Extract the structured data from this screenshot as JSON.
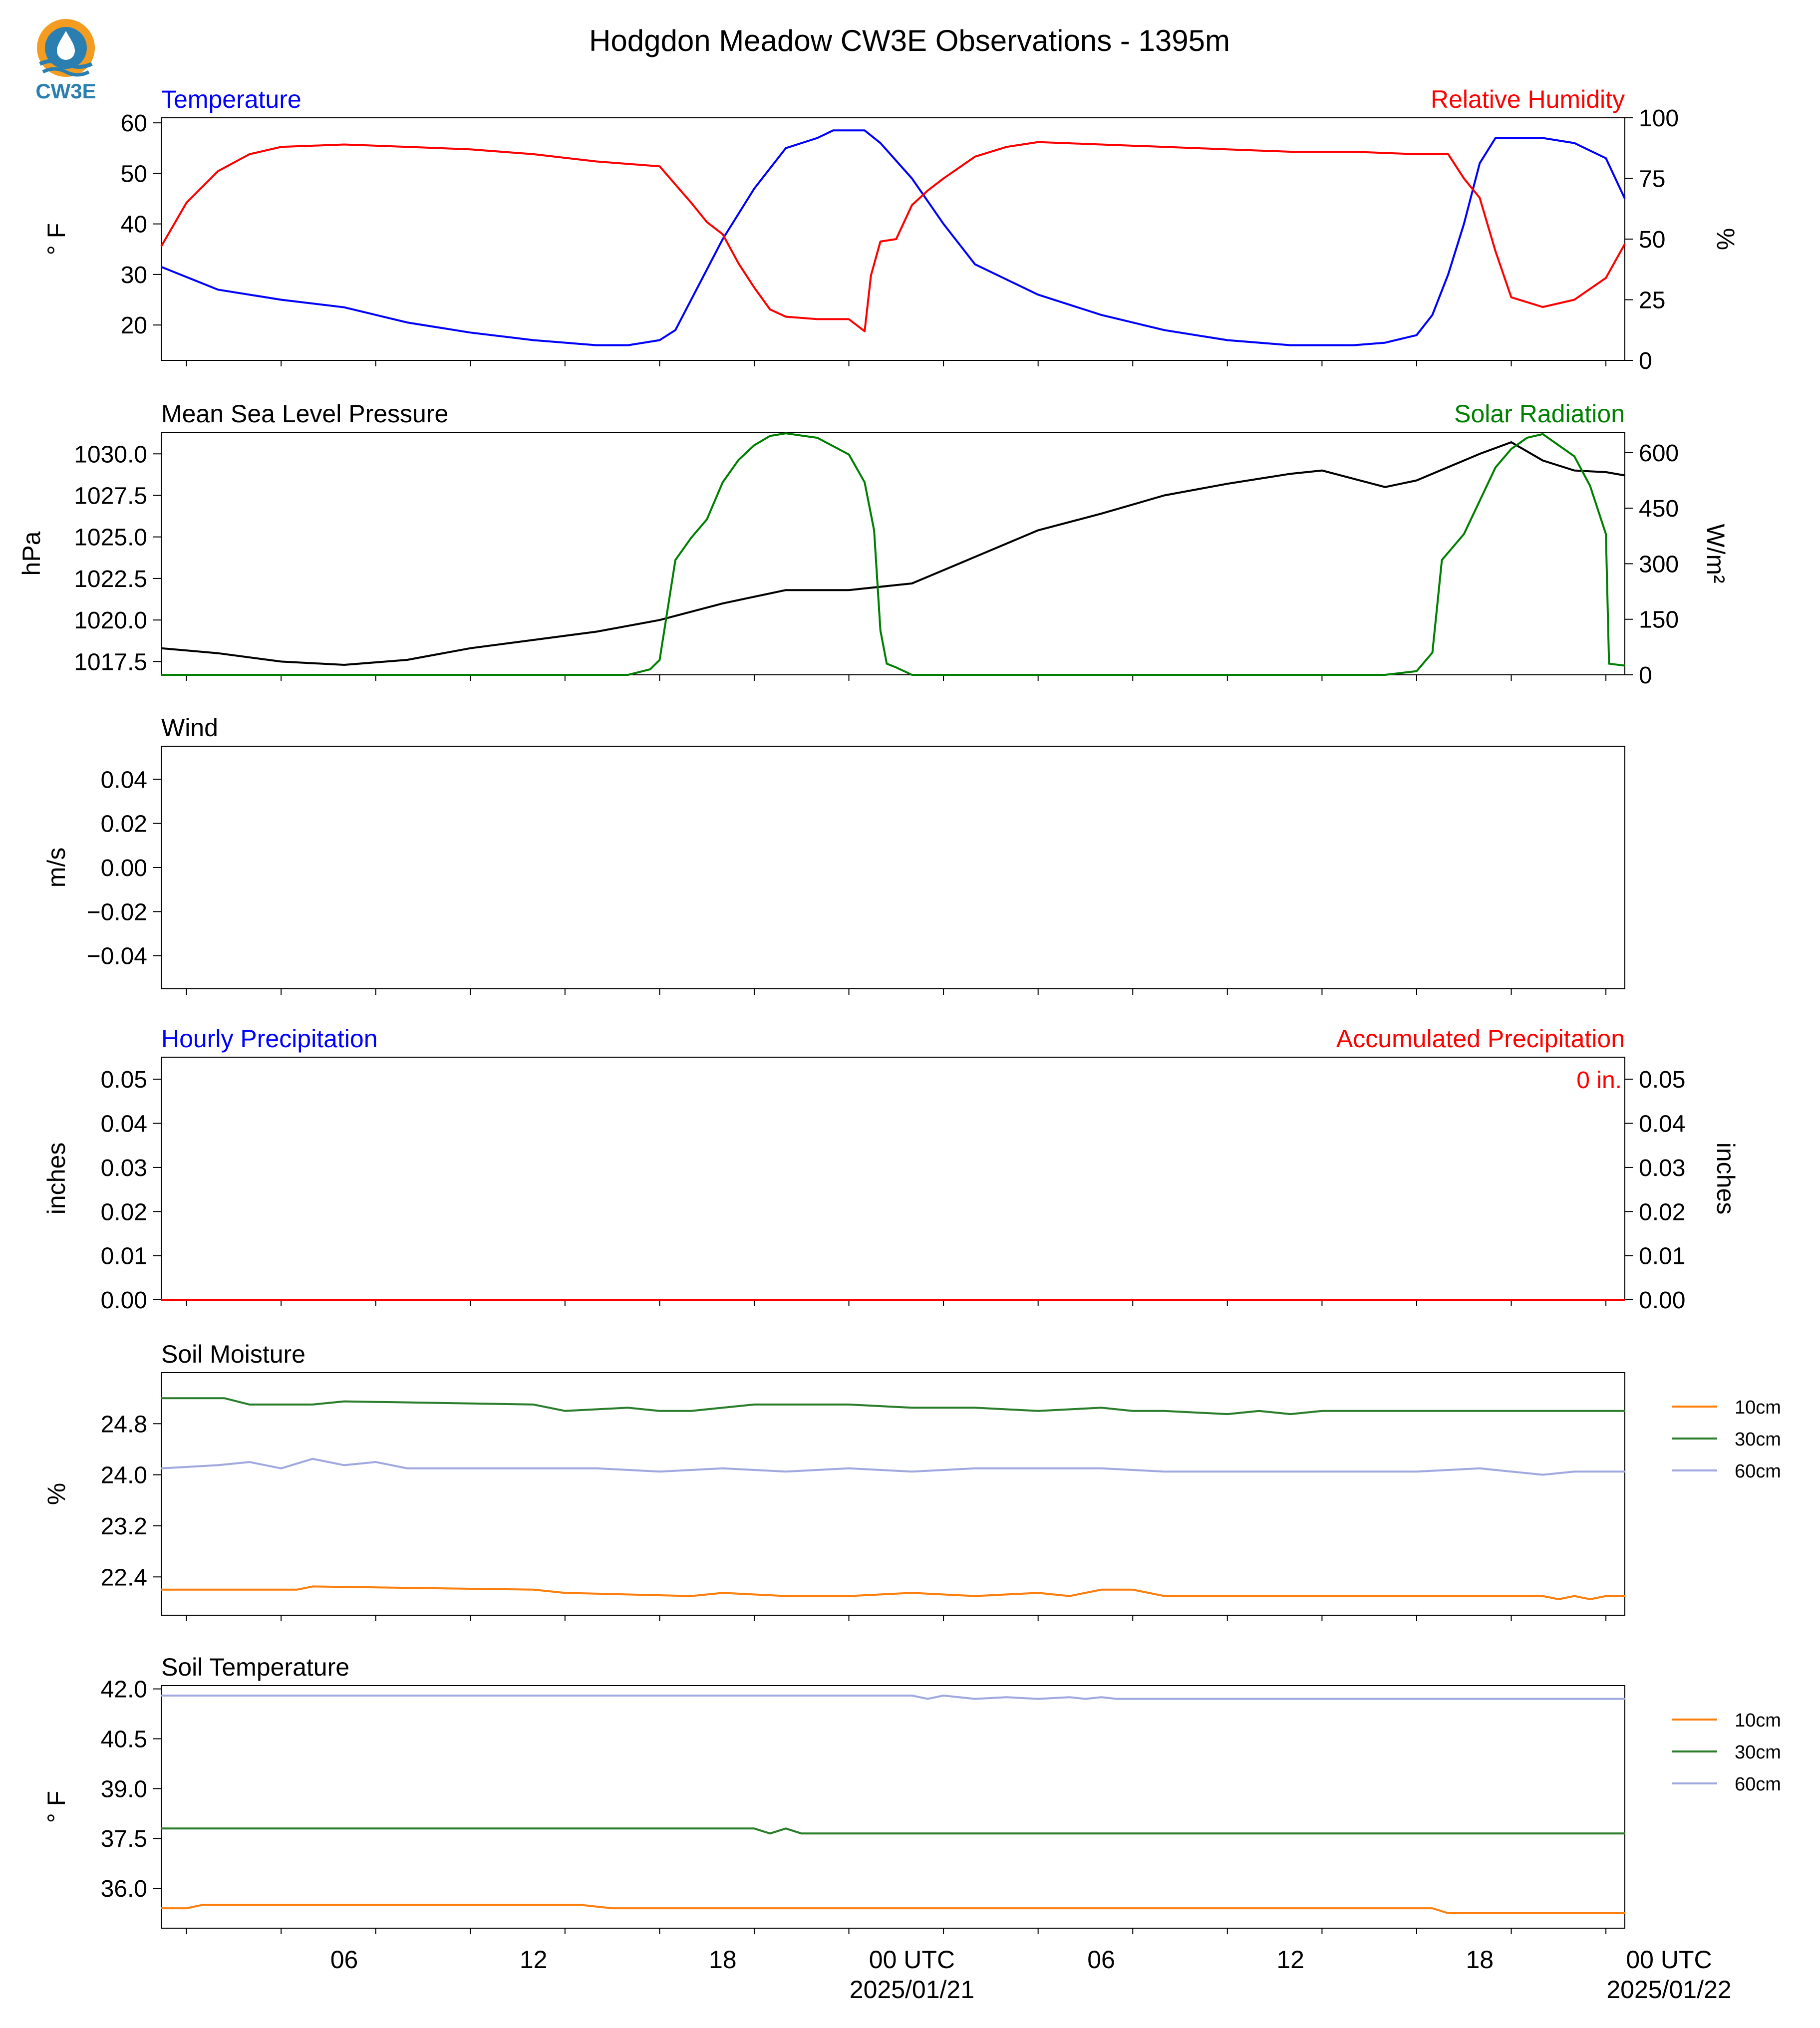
{
  "title": "Hodgdon Meadow CW3E Observations - 1395m",
  "logo": {
    "icon": "cw3e-logo-icon",
    "text": "CW3E"
  },
  "time_axis": {
    "xlim_hours": [
      -23.8,
      22.6
    ],
    "ticks": [
      {
        "h": -18,
        "label": "06"
      },
      {
        "h": -12,
        "label": "12"
      },
      {
        "h": -6,
        "label": "18"
      },
      {
        "h": 0,
        "label": "00 UTC",
        "sub": "2025/01/21"
      },
      {
        "h": 6,
        "label": "06"
      },
      {
        "h": 12,
        "label": "12"
      },
      {
        "h": 18,
        "label": "18"
      },
      {
        "h": 24,
        "label": "00 UTC",
        "sub": "2025/01/22"
      }
    ]
  },
  "colors": {
    "temperature": "#0000ff",
    "humidity": "#ff0000",
    "pressure": "#000000",
    "solar": "#008000",
    "soil_10cm": "#ff7f0e",
    "soil_30cm": "#2a7d2a",
    "soil_60cm": "#a0a8e0"
  },
  "chart_data": [
    {
      "type": "line",
      "title_left": "Temperature",
      "title_right": "Relative Humidity",
      "ylabel_left": "° F",
      "ylabel_right": "%",
      "ylim_left": [
        13,
        61
      ],
      "yticks_left": [
        "20",
        "30",
        "40",
        "50",
        "60"
      ],
      "ylim_right": [
        0,
        100
      ],
      "yticks_right": [
        "0",
        "25",
        "50",
        "75",
        "100"
      ],
      "series": [
        {
          "axis": "left",
          "color": "#0000ff",
          "x": [
            -23.8,
            -22,
            -20,
            -18,
            -16,
            -14,
            -12,
            -10,
            -9,
            -8,
            -7.5,
            -7,
            -6.5,
            -6,
            -5,
            -4,
            -3.5,
            -3,
            -2.5,
            -2,
            -1.5,
            -1,
            0,
            1,
            2,
            4,
            6,
            8,
            10,
            12,
            14,
            15,
            16,
            16.5,
            17,
            17.5,
            18,
            18.5,
            19,
            20,
            21,
            22,
            22.6
          ],
          "y": [
            31.5,
            27,
            25,
            23.5,
            20.5,
            18.5,
            17,
            16,
            16,
            17,
            19,
            25,
            31,
            37,
            47,
            55,
            56,
            57,
            58.5,
            58.5,
            58.5,
            56,
            49,
            40,
            32,
            26,
            22,
            19,
            17,
            16,
            16,
            16.5,
            18,
            22,
            30,
            40,
            52,
            57,
            57,
            57,
            56,
            53,
            45
          ]
        },
        {
          "axis": "right",
          "color": "#ff0000",
          "x": [
            -23.8,
            -23,
            -22,
            -21,
            -20,
            -18,
            -16,
            -14,
            -12,
            -10,
            -8,
            -7,
            -6.5,
            -6,
            -5.5,
            -5,
            -4.5,
            -4,
            -3,
            -2,
            -1.5,
            -1.3,
            -1,
            -0.5,
            0,
            0.5,
            1,
            2,
            3,
            4,
            6,
            8,
            10,
            12,
            14,
            16,
            17,
            17.5,
            18,
            18.5,
            19,
            20,
            21,
            22,
            22.6
          ],
          "y": [
            47,
            65,
            78,
            85,
            88,
            89,
            88,
            87,
            85,
            82,
            80,
            65,
            57,
            52,
            40,
            30,
            21,
            18,
            17,
            17,
            12,
            35,
            49,
            50,
            64,
            70,
            75,
            84,
            88,
            90,
            89,
            88,
            87,
            86,
            86,
            85,
            85,
            75,
            67,
            45,
            26,
            22,
            25,
            34,
            48
          ]
        }
      ]
    },
    {
      "type": "line",
      "title_left": "Mean Sea Level Pressure",
      "title_right": "Solar Radiation",
      "ylabel_left": "hPa",
      "ylabel_right": "W/m²",
      "ylim_left": [
        1016.7,
        1031.3
      ],
      "yticks_left": [
        "1017.5",
        "1020.0",
        "1022.5",
        "1025.0",
        "1027.5",
        "1030.0"
      ],
      "ylim_right": [
        0,
        655
      ],
      "yticks_right": [
        "0",
        "150",
        "300",
        "450",
        "600"
      ],
      "series": [
        {
          "axis": "left",
          "color": "#000000",
          "x": [
            -23.8,
            -22,
            -20,
            -18,
            -16,
            -14,
            -12,
            -10,
            -8,
            -6,
            -4,
            -2,
            0,
            2,
            4,
            6,
            8,
            10,
            12,
            13,
            14,
            15,
            16,
            17,
            18,
            19,
            20,
            21,
            22,
            22.6
          ],
          "y": [
            1018.3,
            1018.0,
            1017.5,
            1017.3,
            1017.6,
            1018.3,
            1018.8,
            1019.3,
            1020.0,
            1021.0,
            1021.8,
            1021.8,
            1022.2,
            1023.8,
            1025.4,
            1026.4,
            1027.5,
            1028.2,
            1028.8,
            1029.0,
            1028.5,
            1028.0,
            1028.4,
            1029.2,
            1030.0,
            1030.7,
            1029.6,
            1029.0,
            1028.9,
            1028.7
          ]
        },
        {
          "axis": "right",
          "color": "#008000",
          "x": [
            -23.8,
            -9,
            -8.3,
            -8,
            -7.5,
            -7,
            -6.5,
            -6,
            -5.5,
            -5,
            -4.5,
            -4,
            -3,
            -2,
            -1.5,
            -1.2,
            -1.0,
            -0.8,
            -0.5,
            0,
            10,
            15,
            16,
            16.5,
            16.8,
            17.5,
            18,
            18.5,
            19,
            19.5,
            20,
            21,
            21.5,
            22,
            22.1,
            22.6
          ],
          "y": [
            0,
            0,
            15,
            40,
            310,
            370,
            420,
            520,
            580,
            620,
            645,
            652,
            640,
            595,
            520,
            390,
            120,
            30,
            20,
            0,
            0,
            0,
            10,
            60,
            310,
            380,
            470,
            560,
            610,
            640,
            650,
            590,
            510,
            380,
            30,
            25
          ]
        }
      ]
    },
    {
      "type": "line",
      "title_left": "Wind",
      "ylabel_left": "m/s",
      "ylim_left": [
        -0.055,
        0.055
      ],
      "yticks_left": [
        "0.04",
        "0.02",
        "0.00",
        "−0.02",
        "−0.04"
      ],
      "series": []
    },
    {
      "type": "line",
      "title_left": "Hourly Precipitation",
      "title_right": "Accumulated Precipitation",
      "ylabel_left": "inches",
      "ylabel_right": "inches",
      "annotation": "0 in.",
      "ylim_left": [
        0,
        0.055
      ],
      "yticks_left": [
        "0.00",
        "0.01",
        "0.02",
        "0.03",
        "0.04",
        "0.05"
      ],
      "ylim_right": [
        0,
        0.055
      ],
      "yticks_right": [
        "0.00",
        "0.01",
        "0.02",
        "0.03",
        "0.04",
        "0.05"
      ],
      "series": [
        {
          "axis": "left",
          "color": "#0000ff",
          "x": [
            -23.8,
            22.6
          ],
          "y": [
            0,
            0
          ]
        },
        {
          "axis": "left",
          "color": "#ff0000",
          "x": [
            -23.8,
            22.6
          ],
          "y": [
            0,
            0
          ]
        }
      ]
    },
    {
      "type": "line",
      "title_left": "Soil Moisture",
      "ylabel_left": "%",
      "ylim_left": [
        21.8,
        25.6
      ],
      "yticks_left": [
        "22.4",
        "23.2",
        "24.0",
        "24.8"
      ],
      "legend": [
        "10cm",
        "30cm",
        "60cm"
      ],
      "series": [
        {
          "name": "10cm",
          "color": "#ff7f0e",
          "x": [
            -23.8,
            -19.5,
            -19,
            -12,
            -11,
            -7,
            -6,
            -4,
            -2,
            0,
            2,
            4,
            5,
            6,
            7,
            8,
            12,
            16,
            17,
            18,
            20,
            20.5,
            21,
            21.5,
            22,
            22.6
          ],
          "y": [
            22.2,
            22.2,
            22.25,
            22.2,
            22.15,
            22.1,
            22.15,
            22.1,
            22.1,
            22.15,
            22.1,
            22.15,
            22.1,
            22.2,
            22.2,
            22.1,
            22.1,
            22.1,
            22.1,
            22.1,
            22.1,
            22.05,
            22.1,
            22.05,
            22.1,
            22.1
          ]
        },
        {
          "name": "30cm",
          "color": "#2a7d2a",
          "x": [
            -23.8,
            -21.8,
            -21,
            -19,
            -18,
            -12,
            -11,
            -9,
            -8,
            -7,
            -6,
            -5,
            -2,
            0,
            2,
            4,
            6,
            7,
            8,
            10,
            11,
            12,
            13,
            16,
            18,
            20,
            22,
            22.6
          ],
          "y": [
            25.2,
            25.2,
            25.1,
            25.1,
            25.15,
            25.1,
            25.0,
            25.05,
            25.0,
            25.0,
            25.05,
            25.1,
            25.1,
            25.05,
            25.05,
            25.0,
            25.05,
            25.0,
            25.0,
            24.95,
            25.0,
            24.95,
            25.0,
            25.0,
            25.0,
            25.0,
            25.0,
            25.0
          ]
        },
        {
          "name": "60cm",
          "color": "#a0a8e0",
          "x": [
            -23.8,
            -22,
            -21,
            -20,
            -19,
            -18,
            -17,
            -16,
            -14,
            -12,
            -10,
            -8,
            -6,
            -4,
            -2,
            0,
            2,
            4,
            6,
            8,
            10,
            12,
            14,
            16,
            18,
            19,
            20,
            21,
            22,
            22.6
          ],
          "y": [
            24.1,
            24.15,
            24.2,
            24.1,
            24.25,
            24.15,
            24.2,
            24.1,
            24.1,
            24.1,
            24.1,
            24.05,
            24.1,
            24.05,
            24.1,
            24.05,
            24.1,
            24.1,
            24.1,
            24.05,
            24.05,
            24.05,
            24.05,
            24.05,
            24.1,
            24.05,
            24.0,
            24.05,
            24.05,
            24.05
          ]
        }
      ]
    },
    {
      "type": "line",
      "title_left": "Soil Temperature",
      "ylabel_left": "° F",
      "ylim_left": [
        34.8,
        42.1
      ],
      "yticks_left": [
        "36.0",
        "37.5",
        "39.0",
        "40.5",
        "42.0"
      ],
      "legend": [
        "10cm",
        "30cm",
        "60cm"
      ],
      "series": [
        {
          "name": "10cm",
          "color": "#ff7f0e",
          "x": [
            -23.8,
            -23,
            -22.5,
            -10.5,
            -10,
            -9.5,
            0,
            12,
            16.5,
            17,
            18,
            22,
            22.6
          ],
          "y": [
            35.4,
            35.4,
            35.5,
            35.5,
            35.45,
            35.4,
            35.4,
            35.4,
            35.4,
            35.25,
            35.25,
            35.25,
            35.25
          ]
        },
        {
          "name": "30cm",
          "color": "#2a7d2a",
          "x": [
            -23.8,
            -5,
            -4.5,
            -4,
            -3.5,
            0,
            12,
            22,
            22.6
          ],
          "y": [
            37.8,
            37.8,
            37.65,
            37.8,
            37.65,
            37.65,
            37.65,
            37.65,
            37.65
          ]
        },
        {
          "name": "60cm",
          "color": "#a0a8e0",
          "x": [
            -23.8,
            -10,
            0,
            0.5,
            1,
            2,
            3,
            4,
            5,
            5.5,
            6,
            6.5,
            8,
            12,
            18,
            22,
            22.6
          ],
          "y": [
            41.8,
            41.8,
            41.8,
            41.7,
            41.8,
            41.7,
            41.75,
            41.7,
            41.75,
            41.7,
            41.75,
            41.7,
            41.7,
            41.7,
            41.7,
            41.7,
            41.7
          ]
        }
      ]
    }
  ]
}
